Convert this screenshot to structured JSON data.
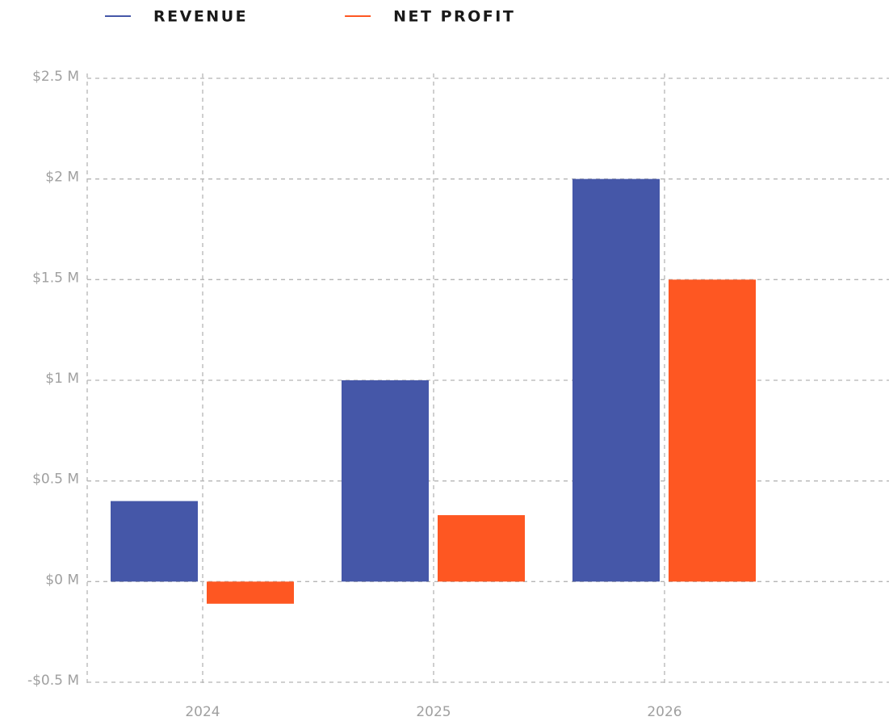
{
  "chart_data": {
    "type": "bar",
    "categories": [
      "2024",
      "2025",
      "2026"
    ],
    "series": [
      {
        "name": "REVENUE",
        "color": "#4557a8",
        "values": [
          0.4,
          1.0,
          2.0
        ]
      },
      {
        "name": "NET PROFIT",
        "color": "#fe5722",
        "values": [
          -0.11,
          0.33,
          1.5
        ]
      }
    ],
    "ylim": [
      -0.5,
      2.5
    ],
    "yticks": [
      {
        "value": -0.5,
        "label": "-$0.5 M"
      },
      {
        "value": 0,
        "label": "$0 M"
      },
      {
        "value": 0.5,
        "label": "$0.5 M"
      },
      {
        "value": 1,
        "label": "$1 M"
      },
      {
        "value": 1.5,
        "label": "$1.5 M"
      },
      {
        "value": 2,
        "label": "$2 M"
      },
      {
        "value": 2.5,
        "label": "$2.5 M"
      }
    ],
    "grid": true,
    "legend": "top"
  }
}
